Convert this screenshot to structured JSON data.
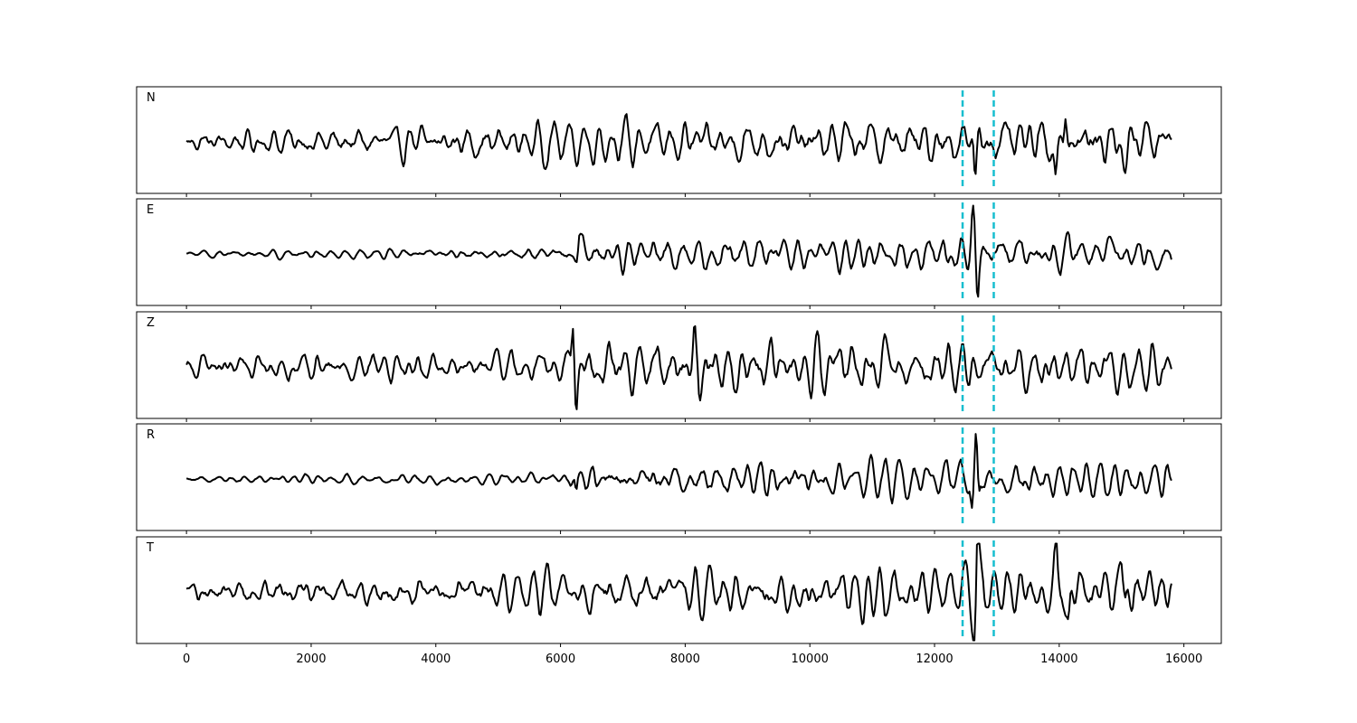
{
  "chart_data": {
    "type": "line",
    "title": "",
    "xlabel": "",
    "ylabel": "",
    "xlim": [
      -800,
      16600
    ],
    "x_ticks": [
      0,
      2000,
      4000,
      6000,
      8000,
      10000,
      12000,
      14000,
      16000
    ],
    "x_tick_labels": [
      "0",
      "2000",
      "4000",
      "6000",
      "8000",
      "10000",
      "12000",
      "14000",
      "16000"
    ],
    "x_range": [
      0,
      15800
    ],
    "grid": false,
    "legend": "none",
    "colors": {
      "trace": "#000000",
      "pick": "#17becf"
    },
    "vertical_markers": [
      12450,
      12950
    ],
    "panels": [
      {
        "label": "N",
        "noise": [
          [
            0,
            0.2
          ],
          [
            6200,
            0.34
          ],
          [
            15800,
            0.42
          ]
        ],
        "events": [
          {
            "x": 12650,
            "amp": -1.0,
            "width": 30
          },
          {
            "x": 12720,
            "amp": 0.55,
            "width": 30
          },
          {
            "x": 14100,
            "amp": 0.65,
            "width": 30
          },
          {
            "x": 13950,
            "amp": -0.65,
            "width": 30
          },
          {
            "x": 15050,
            "amp": -0.5,
            "width": 40
          },
          {
            "x": 15250,
            "amp": 0.4,
            "width": 40
          }
        ]
      },
      {
        "label": "E",
        "noise": [
          [
            0,
            0.05
          ],
          [
            6200,
            0.1
          ],
          [
            6300,
            0.28
          ],
          [
            15800,
            0.28
          ]
        ],
        "events": [
          {
            "x": 12620,
            "amp": 0.95,
            "width": 30
          },
          {
            "x": 12690,
            "amp": -0.95,
            "width": 30
          },
          {
            "x": 6300,
            "amp": 0.3,
            "width": 25
          }
        ]
      },
      {
        "label": "Z",
        "noise": [
          [
            0,
            0.22
          ],
          [
            6100,
            0.25
          ],
          [
            6300,
            0.45
          ],
          [
            15800,
            0.35
          ]
        ],
        "events": [
          {
            "x": 6200,
            "amp": 1.0,
            "width": 25
          },
          {
            "x": 6250,
            "amp": -0.75,
            "width": 25
          },
          {
            "x": 8150,
            "amp": 0.55,
            "width": 30
          },
          {
            "x": 8230,
            "amp": -0.5,
            "width": 30
          }
        ]
      },
      {
        "label": "R",
        "noise": [
          [
            0,
            0.05
          ],
          [
            6100,
            0.1
          ],
          [
            6300,
            0.26
          ],
          [
            15800,
            0.3
          ]
        ],
        "events": [
          {
            "x": 12670,
            "amp": 0.9,
            "width": 30
          },
          {
            "x": 12600,
            "amp": -0.55,
            "width": 30
          },
          {
            "x": 12700,
            "amp": -0.5,
            "width": 30
          },
          {
            "x": 6250,
            "amp": -0.35,
            "width": 25
          }
        ]
      },
      {
        "label": "T",
        "noise": [
          [
            0,
            0.22
          ],
          [
            6200,
            0.35
          ],
          [
            15800,
            0.45
          ]
        ],
        "events": [
          {
            "x": 12690,
            "amp": 0.95,
            "width": 30
          },
          {
            "x": 12640,
            "amp": -0.85,
            "width": 30
          },
          {
            "x": 13950,
            "amp": 0.95,
            "width": 30
          },
          {
            "x": 14150,
            "amp": -0.8,
            "width": 30
          },
          {
            "x": 15100,
            "amp": 0.55,
            "width": 40
          }
        ]
      }
    ]
  }
}
